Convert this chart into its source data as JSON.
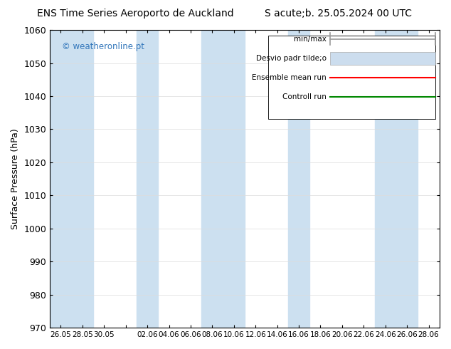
{
  "title_left": "ENS Time Series Aeroporto de Auckland",
  "title_right": "S acute;b. 25.05.2024 00 UTC",
  "ylabel": "Surface Pressure (hPa)",
  "ylim": [
    970,
    1060
  ],
  "yticks": [
    970,
    980,
    990,
    1000,
    1010,
    1020,
    1030,
    1040,
    1050,
    1060
  ],
  "x_tick_labels": [
    "26.05",
    "28.05",
    "30.05",
    "",
    "02.06",
    "04.06",
    "06.06",
    "08.06",
    "10.06",
    "12.06",
    "14.06",
    "16.06",
    "18.06",
    "20.06",
    "22.06",
    "24.06",
    "26.06",
    "28.06"
  ],
  "watermark": "© weatheronline.pt",
  "watermark_color": "#3377bb",
  "bg_color": "#ffffff",
  "plot_bg_color": "#ffffff",
  "legend_entries": [
    "min/max",
    "Desvio padr tilde;o",
    "Ensemble mean run",
    "Controll run"
  ],
  "legend_colors": [
    "#aaaaaa",
    "#ccddee",
    "#ff0000",
    "#008800"
  ],
  "shaded_band_color": "#cce0f0",
  "font_size": 9,
  "title_font_size": 10
}
